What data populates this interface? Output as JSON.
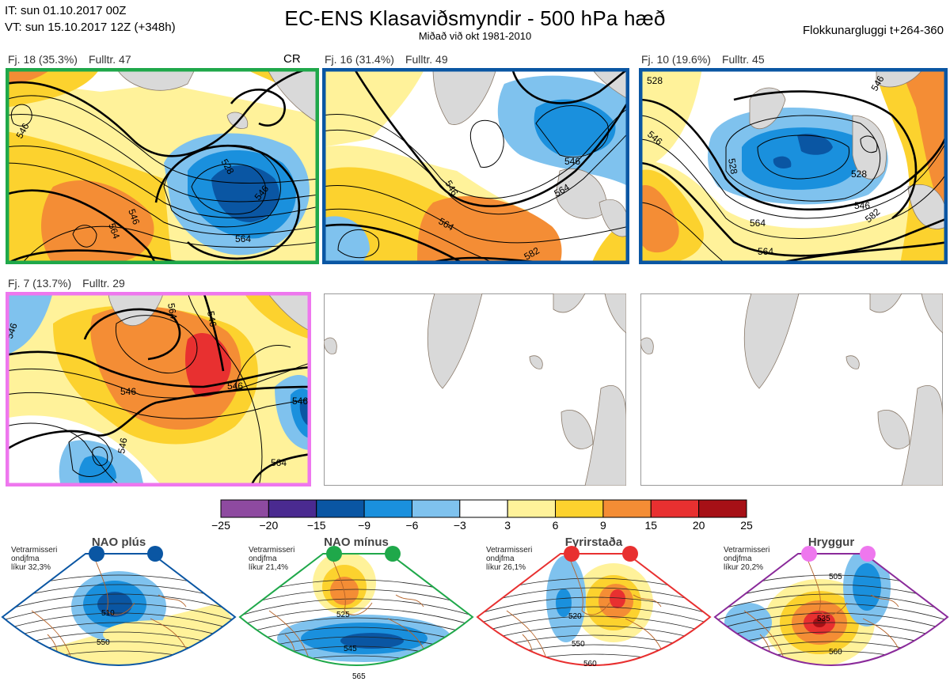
{
  "header": {
    "it": "IT: sun 01.10.2017 00Z",
    "vt": "VT: sun 15.10.2017 12Z  (+348h)",
    "title": "EC-ENS Klasaviðsmyndir - 500 hPa hæð",
    "subtitle": "Miðað við okt 1981-2010",
    "window": "Flokkunargluggi t+264-360",
    "cr": "CR"
  },
  "panels": [
    {
      "id": "p1",
      "pct": "Fj. 18 (35.3%)",
      "members": "Fulltr. 47",
      "border": "#1fa84a",
      "labels": [
        "546",
        "528",
        "546",
        "564",
        "564",
        "546"
      ]
    },
    {
      "id": "p2",
      "pct": "Fj. 16 (31.4%)",
      "members": "Fulltr. 49",
      "border": "#0a56a3",
      "labels": [
        "546",
        "546",
        "564",
        "564",
        "582"
      ]
    },
    {
      "id": "p3",
      "pct": "Fj. 10 (19.6%)",
      "members": "Fulltr. 45",
      "border": "#0a56a3",
      "labels": [
        "528",
        "546",
        "528",
        "528",
        "546",
        "546",
        "564",
        "564",
        "582"
      ]
    },
    {
      "id": "p4",
      "pct": "Fj. 7 (13.7%)",
      "members": "Fulltr. 29",
      "border": "#ee77ee",
      "labels": [
        "546",
        "564",
        "546",
        "546",
        "546",
        "546",
        "564",
        "546"
      ]
    },
    {
      "id": "p5",
      "pct": "",
      "members": "",
      "border": "none",
      "labels": []
    },
    {
      "id": "p6",
      "pct": "",
      "members": "",
      "border": "none",
      "labels": []
    }
  ],
  "colorbar": {
    "ticks": [
      "−25",
      "−20",
      "−15",
      "−9",
      "−6",
      "−3",
      "3",
      "6",
      "9",
      "15",
      "20",
      "25"
    ],
    "colors": [
      "#8e4aa0",
      "#4a2a90",
      "#0a56a3",
      "#1a90dd",
      "#7fc2ee",
      "#ffffff",
      "#fff29a",
      "#fcd22e",
      "#f48d35",
      "#e83030",
      "#a61016"
    ]
  },
  "regimes": [
    {
      "name": "NAO plús",
      "note1": "Vetrarmisseri",
      "note2": "ondjfma",
      "note3": "líkur 32,3%",
      "border": "#0a56a3",
      "dot": "#0a56a3",
      "labels": [
        "510",
        "550"
      ]
    },
    {
      "name": "NAO mínus",
      "note1": "Vetrarmisseri",
      "note2": "ondjfma",
      "note3": "líkur 21,4%",
      "border": "#1fa84a",
      "dot": "#1fa84a",
      "labels": [
        "525",
        "545",
        "565"
      ]
    },
    {
      "name": "Fyrirstaða",
      "note1": "Vetrarmisseri",
      "note2": "ondjfma",
      "note3": "líkur 26,1%",
      "border": "#e83030",
      "dot": "#e83030",
      "labels": [
        "520",
        "550",
        "560"
      ]
    },
    {
      "name": "Hryggur",
      "note1": "Vetrarmisseri",
      "note2": "ondjfma",
      "note3": "líkur 20,2%",
      "border": "#8a2a9a",
      "dot": "#ee77ee",
      "labels": [
        "505",
        "535",
        "560"
      ]
    }
  ],
  "colors": {
    "land": "#d9d9d9",
    "coast": "#8a7a6a",
    "contour": "#000000"
  }
}
